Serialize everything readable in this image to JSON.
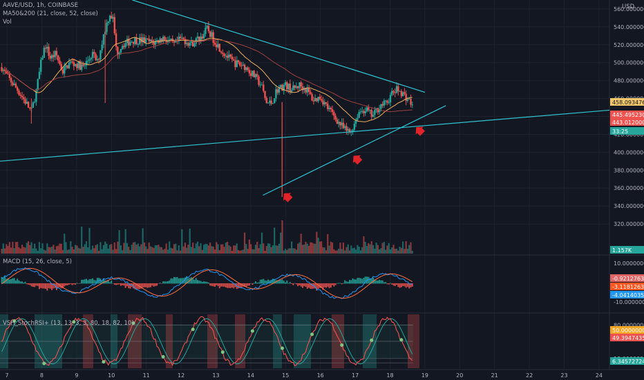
{
  "header": {
    "symbol_line": "AAVE/USD, 1h, COINBASE",
    "ma_line": "MA50&200 (21, close, 52, close)",
    "vol_line": "Vol",
    "currency": "USD"
  },
  "panels": {
    "macd_label": "MACD (15, 26, close, 5)",
    "stoch_label": "VSH_StochRSI+ (13, 13, 3, 3, 80, 18, 82, 10)"
  },
  "price_axis": {
    "ticks": [
      "560.00000000",
      "540.00000000",
      "520.00000000",
      "500.00000000",
      "480.00000000",
      "460.00000000",
      "420.00000000",
      "400.00000000",
      "380.00000000",
      "360.00000000",
      "340.00000000",
      "320.00000000"
    ],
    "badges": [
      {
        "text": "458.09347619",
        "color": "#f5c76b",
        "text_color": "#131722"
      },
      {
        "text": "445.49523077",
        "color": "#ef5350",
        "text_color": "#ffffff"
      },
      {
        "text": "443.01200000",
        "color": "#ef5350",
        "text_color": "#ffffff"
      },
      {
        "text": "33:25",
        "color": "#26a69a",
        "text_color": "#ffffff"
      }
    ],
    "volume_badge": {
      "text": "1.157K",
      "color": "#26a69a"
    }
  },
  "macd_axis": {
    "ticks": [
      "10.00000000",
      "-10.00000000"
    ],
    "badges": [
      {
        "text": "-0.92127631",
        "color": "#e06666"
      },
      {
        "text": "-3.11812633",
        "color": "#ff5722"
      },
      {
        "text": "-4.04140356",
        "color": "#2196f3"
      }
    ]
  },
  "stoch_axis": {
    "ticks": [
      "80.00000000",
      "18.00000000",
      "10.00000000"
    ],
    "badges": [
      {
        "text": "50.00000000",
        "color": "#f5a623"
      },
      {
        "text": "49.39474359",
        "color": "#ef5350"
      },
      {
        "text": "6.34572724",
        "color": "#26a69a"
      }
    ]
  },
  "time_axis": {
    "labels": [
      "7",
      "8",
      "9",
      "10",
      "11",
      "12",
      "13",
      "14",
      "15",
      "16",
      "17",
      "18",
      "19",
      "20",
      "21",
      "22",
      "23",
      "24"
    ]
  },
  "colors": {
    "background": "#131722",
    "up": "#26a69a",
    "down": "#ef5350",
    "trendline": "#2fc6d3",
    "ma_fast": "#f0b060",
    "ma_slow": "#a04040",
    "macd_line": "#2196f3",
    "signal_line": "#ff7043",
    "arrow": "#e0242a"
  },
  "chart_data": {
    "type": "candlestick",
    "title": "AAVE/USD, 1h, COINBASE",
    "x_unit": "day of month",
    "xlim": [
      6.8,
      24.3
    ],
    "ylim": [
      300,
      570
    ],
    "price_keypoints": [
      [
        6.85,
        495
      ],
      [
        7.0,
        485
      ],
      [
        7.3,
        470
      ],
      [
        7.55,
        455
      ],
      [
        7.7,
        445
      ],
      [
        7.85,
        470
      ],
      [
        8.0,
        505
      ],
      [
        8.1,
        520
      ],
      [
        8.25,
        505
      ],
      [
        8.4,
        510
      ],
      [
        8.6,
        490
      ],
      [
        8.8,
        500
      ],
      [
        9.0,
        498
      ],
      [
        9.2,
        495
      ],
      [
        9.45,
        510
      ],
      [
        9.6,
        500
      ],
      [
        9.8,
        535
      ],
      [
        9.95,
        555
      ],
      [
        10.05,
        548
      ],
      [
        10.15,
        510
      ],
      [
        10.3,
        520
      ],
      [
        10.6,
        525
      ],
      [
        10.9,
        525
      ],
      [
        11.2,
        522
      ],
      [
        11.5,
        528
      ],
      [
        11.8,
        520
      ],
      [
        12.0,
        527
      ],
      [
        12.3,
        521
      ],
      [
        12.6,
        530
      ],
      [
        12.75,
        538
      ],
      [
        12.95,
        525
      ],
      [
        13.2,
        512
      ],
      [
        13.5,
        500
      ],
      [
        13.8,
        497
      ],
      [
        14.1,
        485
      ],
      [
        14.3,
        475
      ],
      [
        14.45,
        455
      ],
      [
        14.6,
        455
      ],
      [
        14.75,
        470
      ],
      [
        15.0,
        475
      ],
      [
        15.2,
        470
      ],
      [
        15.4,
        475
      ],
      [
        15.6,
        470
      ],
      [
        15.8,
        458
      ],
      [
        16.0,
        462
      ],
      [
        16.2,
        450
      ],
      [
        16.4,
        440
      ],
      [
        16.55,
        432
      ],
      [
        16.7,
        425
      ],
      [
        16.85,
        422
      ],
      [
        16.95,
        430
      ],
      [
        17.1,
        445
      ],
      [
        17.3,
        448
      ],
      [
        17.5,
        440
      ],
      [
        17.7,
        452
      ],
      [
        17.9,
        455
      ],
      [
        18.05,
        465
      ],
      [
        18.2,
        470
      ],
      [
        18.3,
        468
      ],
      [
        18.45,
        462
      ],
      [
        18.6,
        455
      ],
      [
        18.65,
        450
      ]
    ],
    "flash_wick": {
      "x": 14.9,
      "high": 456,
      "low": 350
    },
    "trendlines": [
      {
        "name": "",
        "from": [
          10.6,
          570
        ],
        "to": [
          19.0,
          467
        ]
      },
      {
        "name": "",
        "from": [
          6.8,
          390
        ],
        "to": [
          24.3,
          447
        ]
      },
      {
        "name": "",
        "from": [
          14.35,
          352
        ],
        "to": [
          19.6,
          452
        ]
      }
    ],
    "annotations": [
      {
        "type": "arrow",
        "x": 14.95,
        "y": 354
      },
      {
        "type": "arrow",
        "x": 16.95,
        "y": 396
      },
      {
        "type": "arrow",
        "x": 18.75,
        "y": 428
      }
    ],
    "last_price": 443.012,
    "volume_last": "1.157K",
    "macd": {
      "fast": 15,
      "slow": 26,
      "signal": 5,
      "macd": -4.04140356,
      "signal_value": -3.11812633,
      "histogram": -0.92127631
    },
    "stoch_rsi": {
      "levels": [
        80,
        50,
        18,
        10
      ],
      "k": 49.39474359,
      "d": 6.34572724
    }
  }
}
